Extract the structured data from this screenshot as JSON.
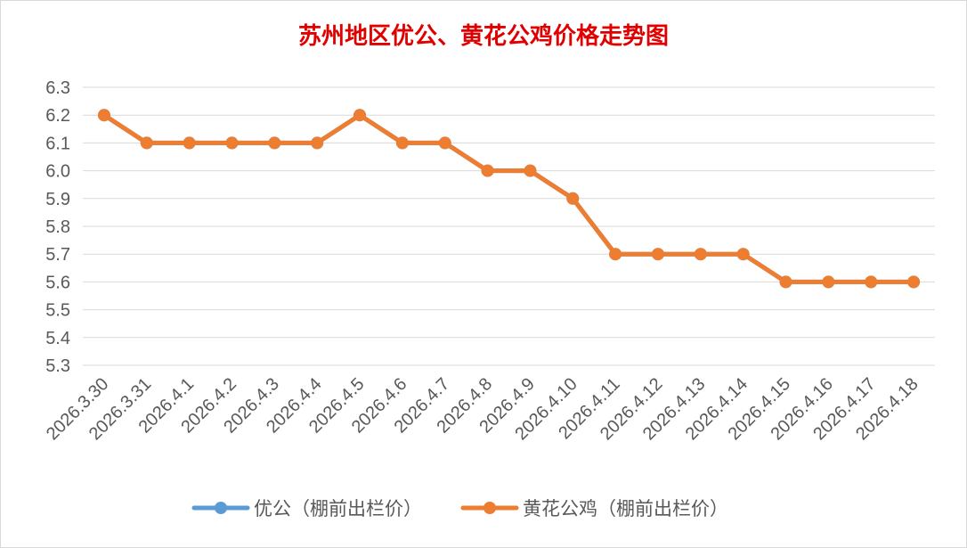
{
  "chart_data": {
    "type": "line",
    "title": "苏州地区优公、黄花公鸡价格走势图",
    "xlabel": "",
    "ylabel": "",
    "categories": [
      "2026.3.30",
      "2026.3.31",
      "2026.4.1",
      "2026.4.2",
      "2026.4.3",
      "2026.4.4",
      "2026.4.5",
      "2026.4.6",
      "2026.4.7",
      "2026.4.8",
      "2026.4.9",
      "2026.4.10",
      "2026.4.11",
      "2026.4.12",
      "2026.4.13",
      "2026.4.14",
      "2026.4.15",
      "2026.4.16",
      "2026.4.17",
      "2026.4.18"
    ],
    "ylim": [
      5.3,
      6.3
    ],
    "yticks": [
      "6.3",
      "6.2",
      "6.1",
      "6.0",
      "5.9",
      "5.8",
      "5.7",
      "5.6",
      "5.5",
      "5.4",
      "5.3"
    ],
    "grid": true,
    "legend_position": "bottom",
    "series": [
      {
        "name": "优公（棚前出栏价）",
        "color": "#5B9BD5",
        "values": [
          6.2,
          6.1,
          6.1,
          6.1,
          6.1,
          6.1,
          6.2,
          6.1,
          6.1,
          6.0,
          6.0,
          5.9,
          5.7,
          5.7,
          5.7,
          5.7,
          5.6,
          5.6,
          5.6,
          5.6
        ]
      },
      {
        "name": "黄花公鸡（棚前出栏价）",
        "color": "#ED7D31",
        "values": [
          6.2,
          6.1,
          6.1,
          6.1,
          6.1,
          6.1,
          6.2,
          6.1,
          6.1,
          6.0,
          6.0,
          5.9,
          5.7,
          5.7,
          5.7,
          5.7,
          5.6,
          5.6,
          5.6,
          5.6
        ]
      }
    ],
    "title_color": "#E00000"
  }
}
